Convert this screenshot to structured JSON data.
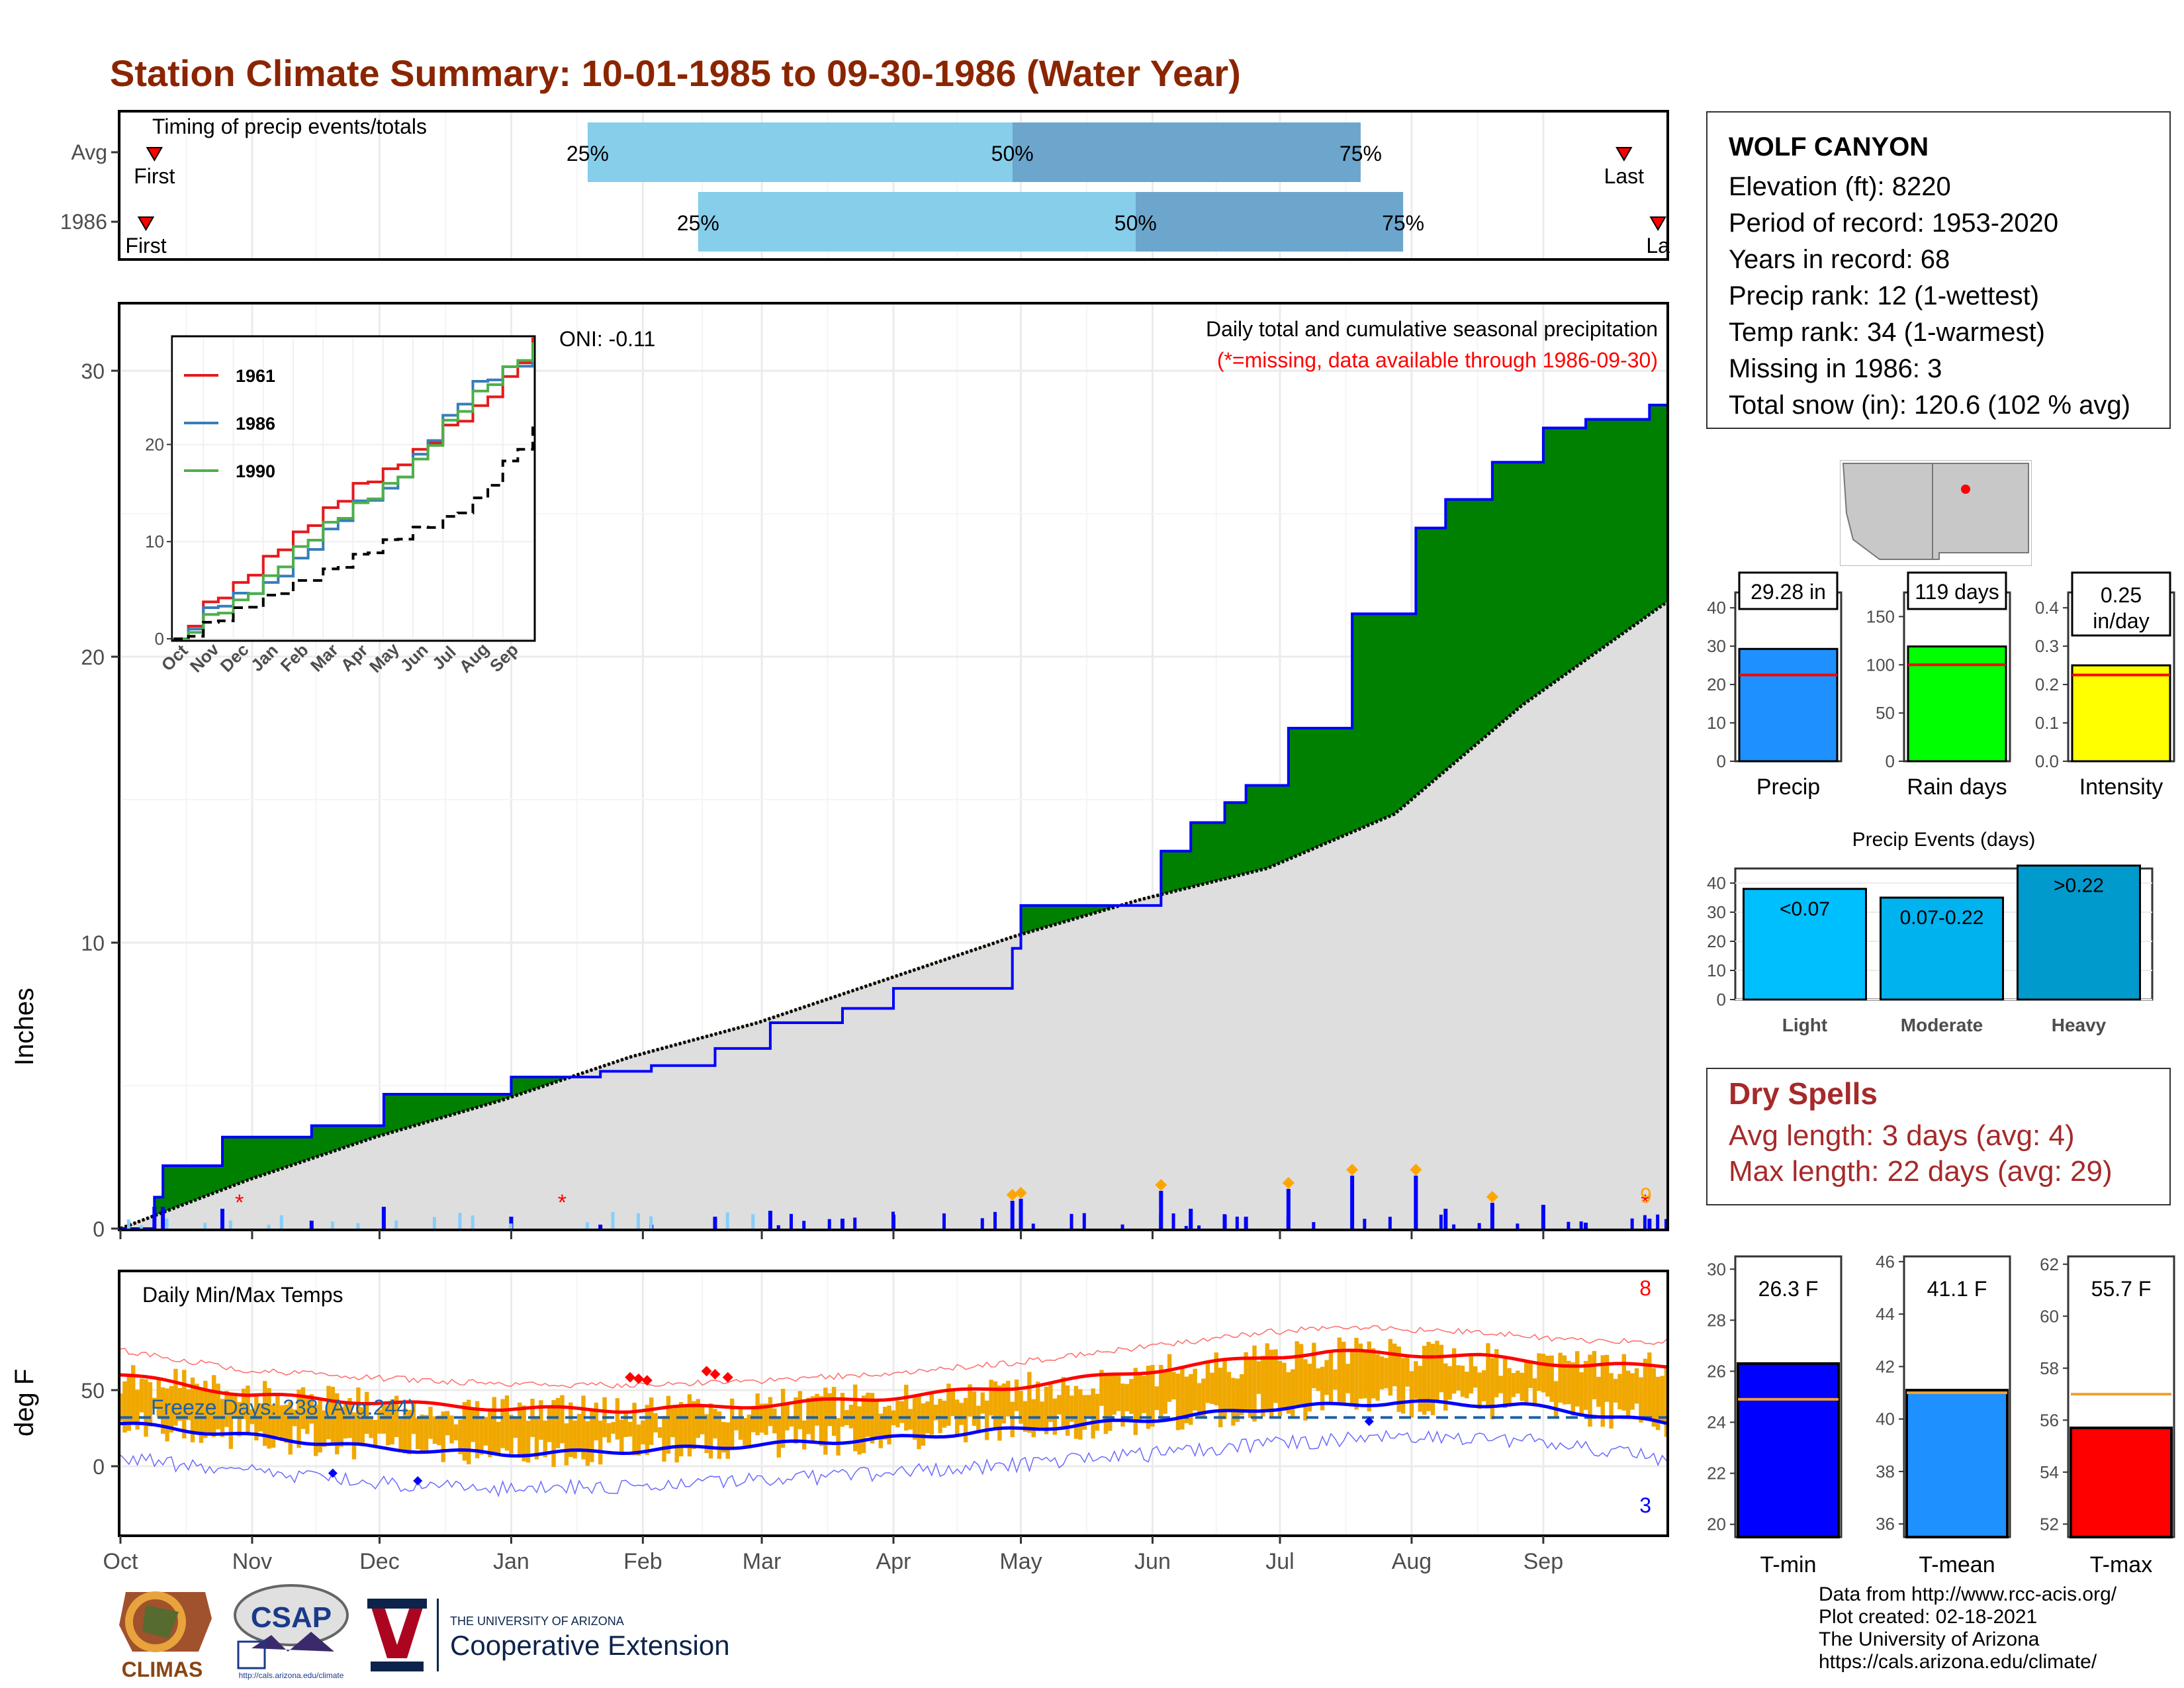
{
  "title": "Station Climate Summary: 10-01-1985 to 09-30-1986 (Water Year)",
  "timing": {
    "label": "Timing of precip events/totals",
    "rows": [
      {
        "name": "Avg",
        "first_label": "First",
        "last_label": "Last",
        "pct25_label": "25%",
        "pct50_label": "50%",
        "pct75_label": "75%",
        "first_day": 8,
        "p25_day": 110,
        "p50_day": 210,
        "p75_day": 292,
        "last_day": 354
      },
      {
        "name": "1986",
        "first_label": "First",
        "last_label": "La",
        "pct25_label": "25%",
        "pct50_label": "50%",
        "pct75_label": "75%",
        "first_day": 6,
        "p25_day": 136,
        "p50_day": 239,
        "p75_day": 302,
        "last_day": 362
      }
    ],
    "colors": {
      "light": "#87ceeb",
      "dark": "#6ca6cd",
      "marker": "#ff0000"
    }
  },
  "precip_panel": {
    "ylabel": "Inches",
    "yticks": [
      "0",
      "10",
      "20",
      "30"
    ],
    "oni_label": "ONI: -0.11",
    "desc_label": "Daily total and cumulative seasonal precipitation",
    "missing_label": "(*=missing, data available through 1986-09-30)",
    "corner_count": "9",
    "colors": {
      "above": "#008000",
      "below": "#8b5a00",
      "normal_fill": "#dedede",
      "line": "#0000ff",
      "missing": "#ff0000",
      "extreme": "#ffa500"
    }
  },
  "temp_panel": {
    "ylabel": "deg F",
    "yticks": [
      "0",
      "50"
    ],
    "title": "Daily Min/Max Temps",
    "freeze_label": "Freeze Days: 238 (Avg:244)",
    "record_high_count": "8",
    "record_low_count": "3",
    "colors": {
      "bars": "#f0a800",
      "max": "#ff0000",
      "min": "#0000ff",
      "freeze": "#1c5fa8"
    }
  },
  "months": [
    "Oct",
    "Nov",
    "Dec",
    "Jan",
    "Feb",
    "Mar",
    "Apr",
    "May",
    "Jun",
    "Jul",
    "Aug",
    "Sep"
  ],
  "inset": {
    "legend": [
      "1961",
      "1986",
      "1990"
    ],
    "legend_colors": [
      "#e41a1c",
      "#377eb8",
      "#4daf4a"
    ],
    "yticks": [
      "0",
      "10",
      "20"
    ],
    "months": [
      "Oct",
      "Nov",
      "Dec",
      "Jan",
      "Feb",
      "Mar",
      "Apr",
      "May",
      "Jun",
      "Jul",
      "Aug",
      "Sep"
    ]
  },
  "station": {
    "name": "WOLF CANYON",
    "elevation": "Elevation (ft): 8220",
    "period": "Period of record: 1953-2020",
    "years": "Years in record: 68",
    "precip_rank": "Precip rank: 12 (1-wettest)",
    "temp_rank": "Temp rank: 34 (1-warmest)",
    "missing": "Missing in 1986: 3",
    "snow": "Total snow (in): 120.6 (102 % avg)"
  },
  "summary_bars": [
    {
      "label": "Precip",
      "value_label": "29.28 in",
      "value": 29.28,
      "avg": 22.5,
      "ymax": 44,
      "yticks": [
        "0",
        "10",
        "20",
        "30",
        "40"
      ],
      "tick_values": [
        0,
        10,
        20,
        30,
        40
      ],
      "color": "#1e90ff"
    },
    {
      "label": "Rain days",
      "value_label": "119 days",
      "value": 119,
      "avg": 100,
      "ymax": 175,
      "yticks": [
        "0",
        "50",
        "100",
        "150"
      ],
      "tick_values": [
        0,
        50,
        100,
        150
      ],
      "color": "#00ff00"
    },
    {
      "label": "Intensity",
      "value_label": "0.25 in/day",
      "value_line1": "0.25",
      "value_line2": "in/day",
      "value": 0.25,
      "avg": 0.225,
      "ymax": 0.44,
      "yticks": [
        "0.0",
        "0.1",
        "0.2",
        "0.3",
        "0.4"
      ],
      "tick_values": [
        0,
        0.1,
        0.2,
        0.3,
        0.4
      ],
      "color": "#ffff00"
    }
  ],
  "precip_events": {
    "title": "Precip Events (days)",
    "yticks": [
      "0",
      "10",
      "20",
      "30",
      "40"
    ],
    "categories": [
      "Light",
      "Moderate",
      "Heavy"
    ],
    "bar_labels": [
      "<0.07",
      "0.07-0.22",
      ">0.22"
    ],
    "values": [
      38,
      35,
      46
    ],
    "colors": [
      "#00bfff",
      "#00b2ee",
      "#009acd"
    ]
  },
  "dry_spells": {
    "title": "Dry Spells",
    "avg": "Avg length: 3 days (avg: 4)",
    "max": "Max length: 22 days (avg: 29)"
  },
  "temp_bars": [
    {
      "label": "T-min",
      "value_label": "26.3 F",
      "value": 26.3,
      "avg": 24.9,
      "ymin": 19.5,
      "ymax": 30.5,
      "yticks": [
        "20",
        "22",
        "24",
        "26",
        "28",
        "30"
      ],
      "tick_values": [
        20,
        22,
        24,
        26,
        28,
        30
      ],
      "color": "#0000ff"
    },
    {
      "label": "T-mean",
      "value_label": "41.1 F",
      "value": 41.1,
      "avg": 41.0,
      "ymin": 35.5,
      "ymax": 46.2,
      "yticks": [
        "36",
        "38",
        "40",
        "42",
        "44",
        "46"
      ],
      "tick_values": [
        36,
        38,
        40,
        42,
        44,
        46
      ],
      "color": "#1e90ff"
    },
    {
      "label": "T-max",
      "value_label": "55.7 F",
      "value": 55.7,
      "avg": 57.0,
      "ymin": 51.5,
      "ymax": 62.3,
      "yticks": [
        "52",
        "54",
        "56",
        "58",
        "60",
        "62"
      ],
      "tick_values": [
        52,
        54,
        56,
        58,
        60,
        62
      ],
      "color": "#ff0000"
    }
  ],
  "logos": {
    "climas": "CLIMAS",
    "csap": "CSAP",
    "csap_url": "http://cals.arizona.edu/climate",
    "ua_small": "THE UNIVERSITY OF ARIZONA",
    "ua_big": "Cooperative Extension"
  },
  "credits": {
    "line1": "Data from http://www.rcc-acis.org/",
    "line2": "Plot created: 02-18-2021",
    "line3": "The University of Arizona",
    "line4": "https://cals.arizona.edu/climate/"
  },
  "chart_data": [
    {
      "type": "area",
      "title": "Daily total and cumulative seasonal precipitation",
      "ylabel": "Inches",
      "ylim": [
        0,
        32
      ],
      "x_unit": "day of water year (Oct 1 = 0)",
      "series": [
        {
          "name": "1986",
          "x": [
            0,
            8,
            10,
            24,
            45,
            62,
            92,
            113,
            125,
            140,
            153,
            170,
            182,
            210,
            212,
            245,
            252,
            260,
            265,
            275,
            290,
            305,
            312,
            323,
            335,
            345,
            360,
            364
          ],
          "values": [
            0,
            1.1,
            2.2,
            3.2,
            3.6,
            4.7,
            5.3,
            5.5,
            5.7,
            6.3,
            7.2,
            7.7,
            8.4,
            9.8,
            11.3,
            13.2,
            14.2,
            14.9,
            15.5,
            17.5,
            21.5,
            24.5,
            25.5,
            26.8,
            28.0,
            28.3,
            28.8,
            29.28
          ]
        },
        {
          "x": [
            0,
            30,
            60,
            90,
            120,
            150,
            180,
            210,
            240,
            270,
            300,
            330,
            364
          ],
          "values": [
            0,
            1.7,
            3.2,
            4.5,
            6.0,
            7.2,
            8.7,
            10.2,
            11.5,
            12.6,
            14.5,
            18.3,
            21.9
          ]
        }
      ],
      "inset": {
        "type": "line",
        "series": [
          {
            "name": "1961",
            "values": [
              0,
              3.8,
              5.8,
              8.5,
              11,
              13.5,
              16,
              17.5,
              19.5,
              22,
              24,
              27,
              31
            ]
          },
          {
            "name": "1986",
            "values": [
              0,
              3.2,
              4.7,
              5.8,
              8.3,
              11.3,
              14.2,
              15.5,
              19,
              23,
              26.5,
              28,
              29.3
            ]
          },
          {
            "name": "1990",
            "values": [
              0,
              2.5,
              4,
              6.5,
              9.5,
              12,
              14,
              16,
              18.5,
              22.5,
              25.5,
              28,
              30.5
            ]
          },
          {
            "values": [
              0,
              1.7,
              3.2,
              4.5,
              6.0,
              7.2,
              8.7,
              10.2,
              11.5,
              12.6,
              14.5,
              18.3,
              21.9
            ]
          }
        ]
      }
    },
    {
      "type": "line",
      "title": "Daily Min/Max Temps",
      "ylabel": "deg F",
      "ylim": [
        -25,
        85
      ],
      "x_unit": "day of water year (Oct 1 = 0)",
      "series": [
        {
          "x": [
            0,
            30,
            60,
            90,
            120,
            150,
            180,
            210,
            240,
            270,
            285,
            300,
            320,
            345,
            364
          ],
          "values": [
            60,
            47,
            42,
            38,
            37,
            40,
            45,
            52,
            62,
            72,
            75,
            74,
            72,
            66,
            66
          ]
        },
        {
          "x": [
            0,
            30,
            60,
            90,
            120,
            150,
            180,
            210,
            240,
            270,
            300,
            330,
            364
          ],
          "values": [
            28,
            20,
            12,
            8,
            10,
            14,
            18,
            24,
            30,
            38,
            42,
            40,
            28
          ]
        }
      ],
      "freeze_line": 32
    }
  ]
}
